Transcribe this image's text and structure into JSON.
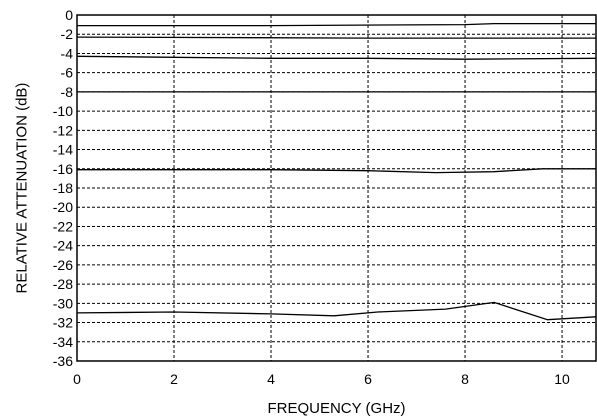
{
  "chart_data": {
    "type": "line",
    "title": "",
    "xlabel": "FREQUENCY (GHz)",
    "ylabel": "RELATIVE ATTENUATION (dB)",
    "xlim": [
      0,
      10.7
    ],
    "ylim": [
      -36,
      0
    ],
    "x_ticks": [
      0,
      2,
      4,
      6,
      8,
      10
    ],
    "x_tick_labels": [
      "0",
      "2",
      "4",
      "6",
      "8",
      "10"
    ],
    "y_ticks": [
      0,
      -2,
      -4,
      -6,
      -8,
      -10,
      -12,
      -14,
      -16,
      -18,
      -20,
      -22,
      -24,
      -26,
      -28,
      -30,
      -32,
      -34,
      -36
    ],
    "y_tick_labels": [
      "0",
      "-2",
      "-4",
      "-6",
      "-8",
      "-10",
      "-12",
      "-14",
      "-16",
      "-18",
      "-20",
      "-22",
      "-24",
      "-26",
      "-28",
      "-30",
      "-32",
      "-34",
      "-36"
    ],
    "grid": true,
    "legend": "none",
    "series": [
      {
        "x": [
          0,
          4,
          8,
          8.6,
          10.7
        ],
        "y": [
          -1.1,
          -1.1,
          -1.0,
          -0.9,
          -0.9
        ]
      },
      {
        "x": [
          0,
          6,
          10.7
        ],
        "y": [
          -2.3,
          -2.4,
          -2.4
        ]
      },
      {
        "x": [
          0,
          2,
          4,
          6,
          8,
          10.7
        ],
        "y": [
          -4.3,
          -4.4,
          -4.5,
          -4.5,
          -4.6,
          -4.5
        ]
      },
      {
        "x": [
          0,
          4,
          8,
          10.7
        ],
        "y": [
          -8.0,
          -8.0,
          -8.0,
          -8.0
        ]
      },
      {
        "x": [
          0,
          4,
          6,
          7.4,
          8.6,
          9.6,
          10.7
        ],
        "y": [
          -16.1,
          -16.1,
          -16.2,
          -16.4,
          -16.3,
          -16.0,
          -16.0
        ]
      },
      {
        "x": [
          0,
          2,
          4,
          5.3,
          6.2,
          7.6,
          8.6,
          9.7,
          10.7
        ],
        "y": [
          -31.0,
          -30.9,
          -31.1,
          -31.3,
          -30.9,
          -30.6,
          -29.9,
          -31.7,
          -31.4
        ]
      }
    ]
  }
}
